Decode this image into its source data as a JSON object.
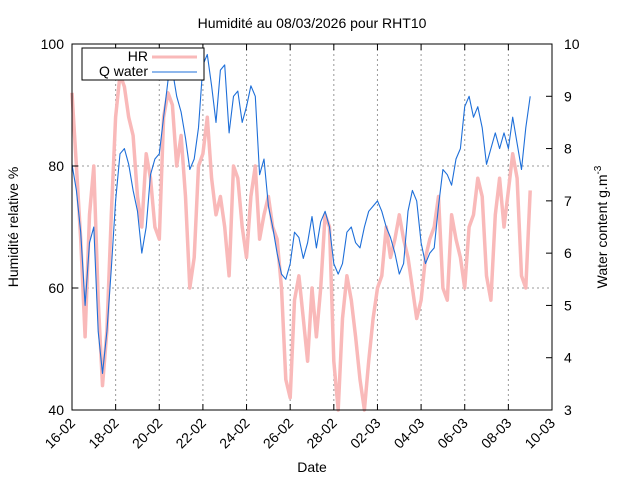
{
  "chart_data": {
    "type": "line",
    "title": "Humidité au 08/03/2026 pour RHT10",
    "xlabel": "Date",
    "ylabel": "Humidité relative %",
    "y2label": "Water content g.m",
    "y2label_sup": "-3",
    "x_ticks": [
      "16-02",
      "18-02",
      "20-02",
      "22-02",
      "24-02",
      "26-02",
      "28-02",
      "02-03",
      "04-03",
      "06-03",
      "08-03",
      "10-03"
    ],
    "xlim": [
      0,
      22
    ],
    "ylim": [
      40,
      100
    ],
    "y_ticks": [
      "40",
      "60",
      "80",
      "100"
    ],
    "y2lim": [
      3,
      10
    ],
    "y2_ticks": [
      "3",
      "4",
      "5",
      "6",
      "7",
      "8",
      "9",
      "10"
    ],
    "grid": true,
    "legend_position": "top-left",
    "series": [
      {
        "name": "HR",
        "color": "#f9b9b9",
        "axis": "left",
        "x": [
          0,
          0.2,
          0.4,
          0.6,
          0.8,
          1.0,
          1.2,
          1.4,
          1.6,
          1.8,
          2.0,
          2.2,
          2.4,
          2.6,
          2.8,
          3.0,
          3.2,
          3.4,
          3.6,
          3.8,
          4.0,
          4.2,
          4.4,
          4.6,
          4.8,
          5.0,
          5.2,
          5.4,
          5.6,
          5.8,
          6.0,
          6.2,
          6.4,
          6.6,
          6.8,
          7.0,
          7.2,
          7.4,
          7.6,
          7.8,
          8.0,
          8.2,
          8.4,
          8.6,
          8.8,
          9.0,
          9.2,
          9.4,
          9.6,
          9.8,
          10.0,
          10.2,
          10.4,
          10.6,
          10.8,
          11.0,
          11.2,
          11.4,
          11.6,
          11.8,
          12.0,
          12.2,
          12.4,
          12.6,
          12.8,
          13.0,
          13.2,
          13.4,
          13.6,
          13.8,
          14.0,
          14.2,
          14.4,
          14.6,
          14.8,
          15.0,
          15.2,
          15.4,
          15.6,
          15.8,
          16.0,
          16.2,
          16.4,
          16.6,
          16.8,
          17.0,
          17.2,
          17.4,
          17.6,
          17.8,
          18.0,
          18.2,
          18.4,
          18.6,
          18.8,
          19.0,
          19.2,
          19.4,
          19.6,
          19.8,
          20.0,
          20.2,
          20.4,
          20.6,
          20.8,
          21.0
        ],
        "values": [
          92,
          80,
          68,
          52,
          72,
          80,
          58,
          44,
          53,
          72,
          88,
          95,
          93,
          88,
          85,
          75,
          70,
          82,
          78,
          70,
          68,
          88,
          92,
          90,
          80,
          85,
          75,
          60,
          65,
          80,
          82,
          88,
          78,
          72,
          75,
          70,
          62,
          80,
          78,
          70,
          65,
          75,
          80,
          68,
          72,
          75,
          70,
          68,
          60,
          45,
          42,
          58,
          62,
          55,
          48,
          60,
          52,
          60,
          72,
          70,
          48,
          40,
          55,
          62,
          58,
          52,
          45,
          40,
          48,
          55,
          60,
          62,
          70,
          65,
          68,
          72,
          68,
          65,
          60,
          55,
          58,
          65,
          68,
          70,
          75,
          60,
          58,
          72,
          68,
          65,
          60,
          70,
          72,
          78,
          75,
          62,
          58,
          72,
          78,
          70,
          76,
          82,
          78,
          62,
          60,
          76
        ]
      },
      {
        "name": "Q water",
        "color": "#1e6fd9",
        "axis": "right",
        "x": [
          0,
          0.2,
          0.4,
          0.6,
          0.8,
          1.0,
          1.2,
          1.4,
          1.6,
          1.8,
          2.0,
          2.2,
          2.4,
          2.6,
          2.8,
          3.0,
          3.2,
          3.4,
          3.6,
          3.8,
          4.0,
          4.2,
          4.4,
          4.6,
          4.8,
          5.0,
          5.2,
          5.4,
          5.6,
          5.8,
          6.0,
          6.2,
          6.4,
          6.6,
          6.8,
          7.0,
          7.2,
          7.4,
          7.6,
          7.8,
          8.0,
          8.2,
          8.4,
          8.6,
          8.8,
          9.0,
          9.2,
          9.4,
          9.6,
          9.8,
          10.0,
          10.2,
          10.4,
          10.6,
          10.8,
          11.0,
          11.2,
          11.4,
          11.6,
          11.8,
          12.0,
          12.2,
          12.4,
          12.6,
          12.8,
          13.0,
          13.2,
          13.4,
          13.6,
          13.8,
          14.0,
          14.2,
          14.4,
          14.6,
          14.8,
          15.0,
          15.2,
          15.4,
          15.6,
          15.8,
          16.0,
          16.2,
          16.4,
          16.6,
          16.8,
          17.0,
          17.2,
          17.4,
          17.6,
          17.8,
          18.0,
          18.2,
          18.4,
          18.6,
          18.8,
          19.0,
          19.2,
          19.4,
          19.6,
          19.8,
          20.0,
          20.2,
          20.4,
          20.6,
          20.8,
          21.0
        ],
        "values": [
          7.7,
          7.2,
          6.4,
          5.0,
          6.2,
          6.5,
          4.5,
          3.7,
          4.5,
          5.7,
          7.0,
          7.9,
          8.0,
          7.7,
          7.2,
          6.8,
          6.0,
          6.5,
          7.5,
          7.8,
          7.9,
          8.6,
          9.3,
          9.5,
          9.0,
          8.7,
          8.2,
          7.6,
          7.8,
          8.4,
          9.6,
          9.8,
          9.2,
          8.5,
          9.5,
          9.6,
          8.3,
          9.0,
          9.1,
          8.5,
          8.8,
          9.2,
          9.0,
          7.5,
          7.8,
          6.9,
          6.5,
          6.0,
          5.6,
          5.5,
          5.8,
          6.4,
          6.3,
          5.9,
          6.2,
          6.7,
          6.1,
          6.6,
          6.8,
          6.5,
          5.8,
          5.6,
          5.8,
          6.4,
          6.5,
          6.2,
          6.1,
          6.5,
          6.8,
          6.9,
          7.0,
          6.8,
          6.5,
          6.3,
          6.0,
          5.6,
          5.8,
          6.8,
          7.2,
          7.0,
          6.2,
          5.8,
          6.0,
          6.1,
          6.9,
          7.6,
          7.5,
          7.3,
          7.8,
          8.0,
          8.8,
          9.0,
          8.6,
          8.8,
          8.4,
          7.7,
          8.0,
          8.3,
          8.0,
          8.3,
          8.0,
          8.6,
          8.1,
          7.6,
          8.4,
          9.0
        ]
      }
    ]
  }
}
